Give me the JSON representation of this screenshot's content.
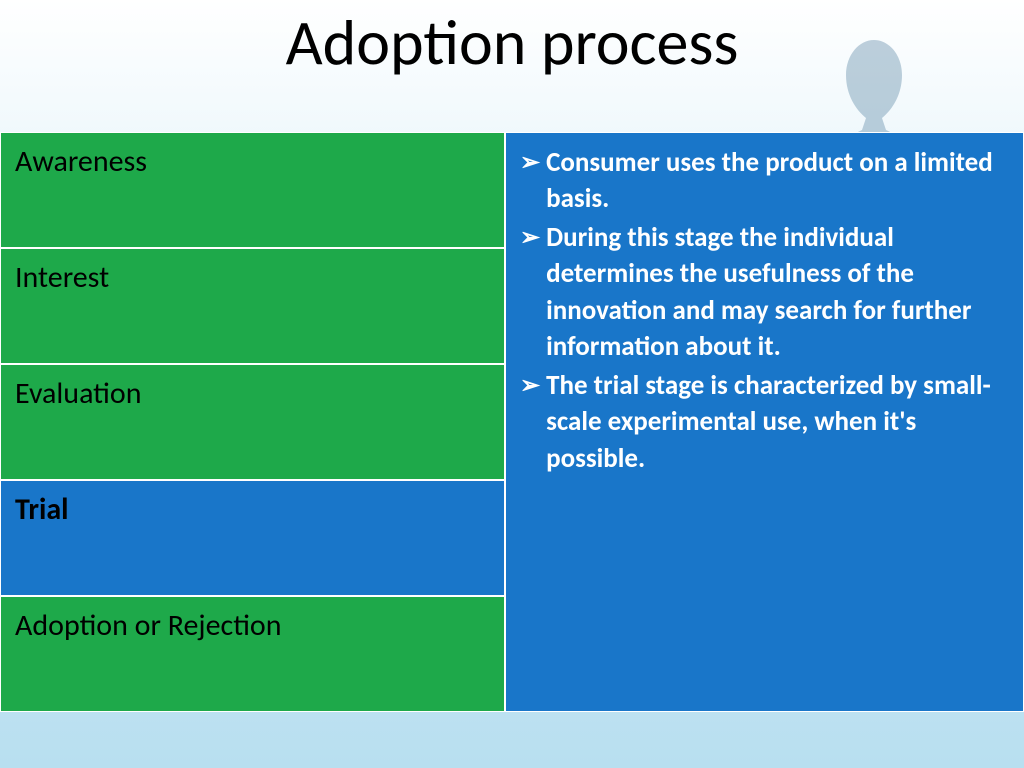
{
  "title": "Adoption process",
  "colors": {
    "stage_default": "#1ea94a",
    "stage_active": "#1976c9",
    "panel_bg": "#1976c9",
    "panel_text": "#ffffff",
    "stage_text": "#000000",
    "border": "#ffffff"
  },
  "stages": [
    {
      "label": "Awareness",
      "active": false,
      "bold": false
    },
    {
      "label": "Interest",
      "active": false,
      "bold": false
    },
    {
      "label": "Evaluation",
      "active": false,
      "bold": false
    },
    {
      "label": "Trial",
      "active": true,
      "bold": true
    },
    {
      "label": "Adoption or Rejection",
      "active": false,
      "bold": false
    }
  ],
  "detail": {
    "bullets": [
      "Consumer uses the product on a limited basis.",
      "During this stage the individual determines the usefulness of the innovation and may search for further information about it.",
      "The trial stage is characterized by small-scale experimental use, when it's possible."
    ]
  }
}
